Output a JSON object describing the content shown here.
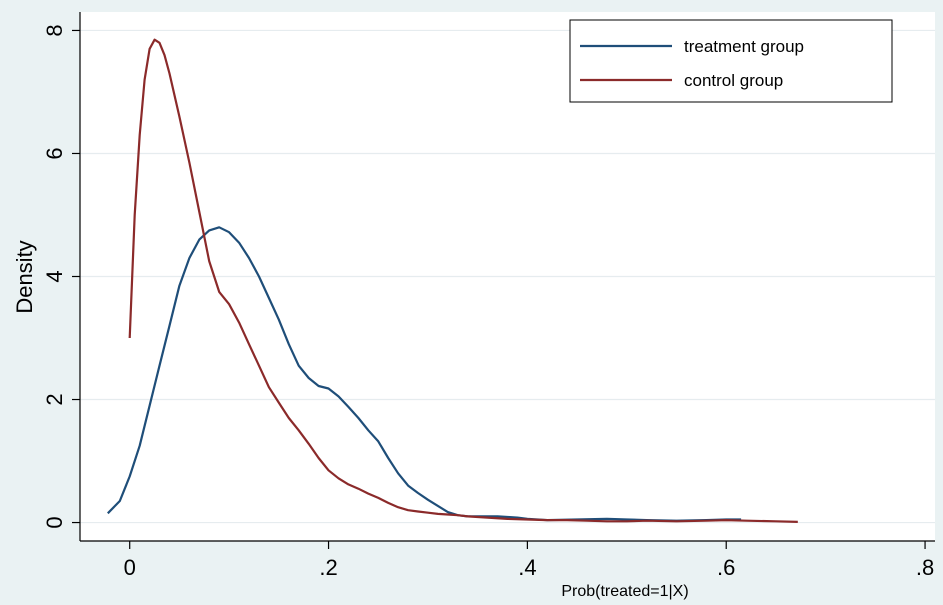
{
  "chart_data": {
    "type": "line",
    "title": "",
    "xlabel": "Prob(treated=1|X)",
    "ylabel": "Density",
    "xlim": [
      -0.05,
      0.81
    ],
    "ylim": [
      -0.3,
      8.3
    ],
    "x_ticks": [
      0,
      0.2,
      0.4,
      0.6,
      0.8
    ],
    "x_tick_labels": [
      "0",
      ".2",
      ".4",
      ".6",
      ".8"
    ],
    "y_ticks": [
      0,
      2,
      4,
      6,
      8
    ],
    "y_tick_labels": [
      "0",
      "2",
      "4",
      "6",
      "8"
    ],
    "grid": true,
    "legend_position": "top-right",
    "colors": {
      "plot_bg": "#ffffff",
      "outer_bg": "#eaf2f3",
      "grid": "#e6ecef"
    },
    "series": [
      {
        "name": "treatment group",
        "color": "#1f4e79",
        "x": [
          -0.022,
          -0.01,
          0.0,
          0.01,
          0.02,
          0.03,
          0.04,
          0.05,
          0.06,
          0.07,
          0.08,
          0.09,
          0.1,
          0.11,
          0.12,
          0.13,
          0.14,
          0.15,
          0.16,
          0.17,
          0.18,
          0.19,
          0.2,
          0.21,
          0.22,
          0.23,
          0.24,
          0.25,
          0.26,
          0.27,
          0.28,
          0.29,
          0.3,
          0.31,
          0.32,
          0.33,
          0.34,
          0.35,
          0.36,
          0.37,
          0.38,
          0.39,
          0.4,
          0.41,
          0.42,
          0.45,
          0.48,
          0.5,
          0.52,
          0.55,
          0.58,
          0.6,
          0.615
        ],
        "y": [
          0.15,
          0.35,
          0.75,
          1.25,
          1.9,
          2.55,
          3.2,
          3.85,
          4.3,
          4.6,
          4.75,
          4.8,
          4.72,
          4.55,
          4.3,
          4.0,
          3.65,
          3.3,
          2.9,
          2.55,
          2.35,
          2.22,
          2.18,
          2.05,
          1.88,
          1.7,
          1.5,
          1.32,
          1.05,
          0.8,
          0.6,
          0.48,
          0.37,
          0.27,
          0.17,
          0.12,
          0.1,
          0.1,
          0.1,
          0.1,
          0.09,
          0.08,
          0.06,
          0.05,
          0.04,
          0.05,
          0.06,
          0.05,
          0.04,
          0.03,
          0.04,
          0.05,
          0.05
        ]
      },
      {
        "name": "control group",
        "color": "#8b2a2a",
        "x": [
          0.0,
          0.005,
          0.01,
          0.015,
          0.02,
          0.025,
          0.03,
          0.035,
          0.04,
          0.05,
          0.06,
          0.07,
          0.08,
          0.09,
          0.1,
          0.11,
          0.12,
          0.13,
          0.14,
          0.15,
          0.16,
          0.17,
          0.18,
          0.19,
          0.2,
          0.21,
          0.22,
          0.23,
          0.24,
          0.25,
          0.26,
          0.27,
          0.28,
          0.29,
          0.3,
          0.31,
          0.32,
          0.33,
          0.34,
          0.36,
          0.38,
          0.4,
          0.42,
          0.44,
          0.46,
          0.48,
          0.5,
          0.52,
          0.55,
          0.58,
          0.6,
          0.62,
          0.65,
          0.672
        ],
        "y": [
          3.0,
          5.0,
          6.3,
          7.2,
          7.7,
          7.85,
          7.8,
          7.6,
          7.3,
          6.6,
          5.85,
          5.05,
          4.25,
          3.75,
          3.55,
          3.25,
          2.9,
          2.55,
          2.2,
          1.95,
          1.7,
          1.5,
          1.28,
          1.05,
          0.85,
          0.72,
          0.62,
          0.55,
          0.47,
          0.4,
          0.32,
          0.25,
          0.2,
          0.18,
          0.16,
          0.14,
          0.13,
          0.12,
          0.1,
          0.08,
          0.06,
          0.05,
          0.04,
          0.04,
          0.03,
          0.02,
          0.02,
          0.03,
          0.02,
          0.03,
          0.04,
          0.03,
          0.02,
          0.01
        ]
      }
    ]
  }
}
